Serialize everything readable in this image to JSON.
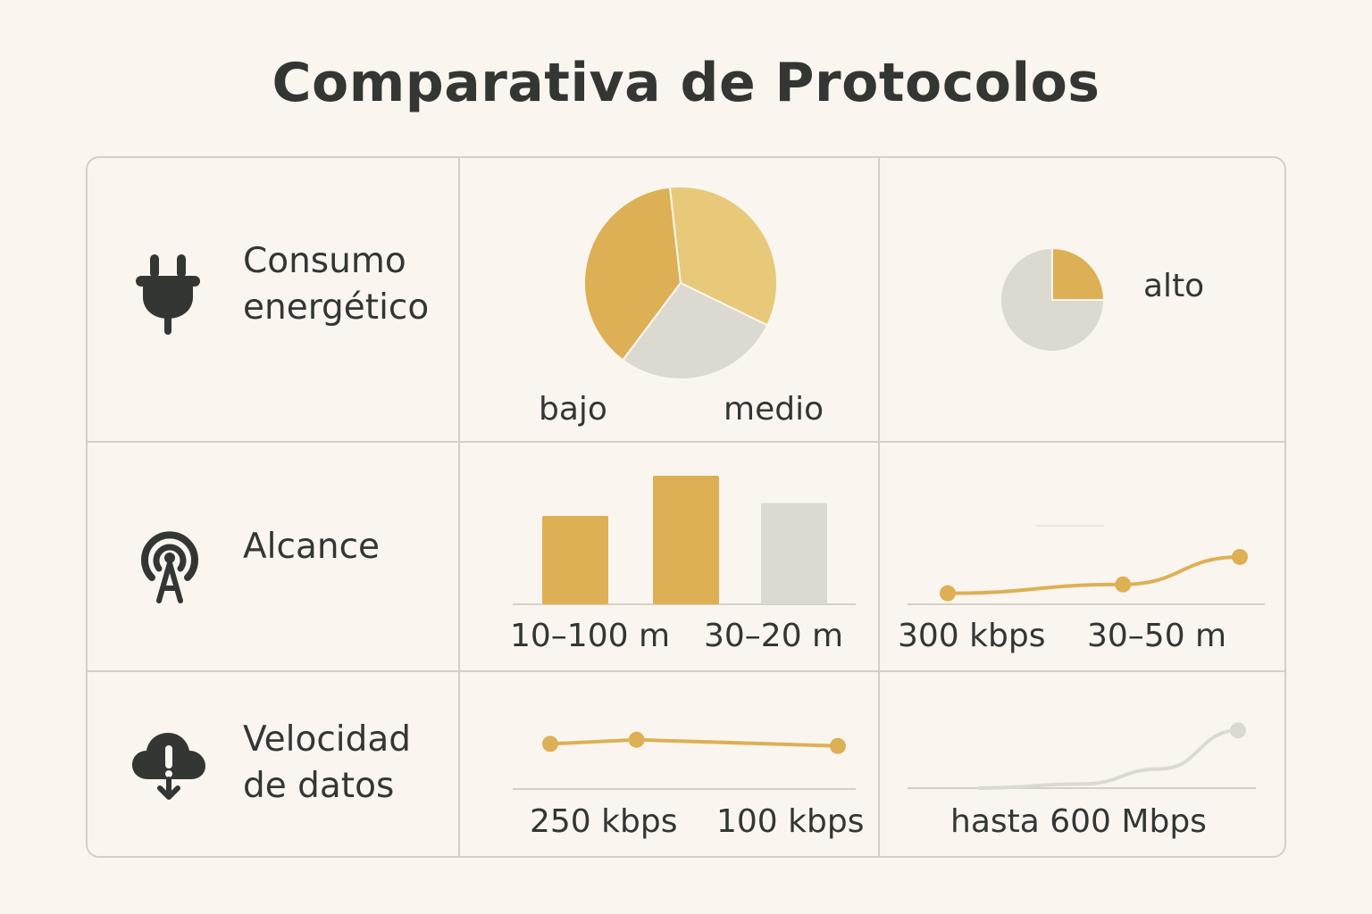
{
  "title": "Comparativa de Protocolos",
  "colors": {
    "background": "#faf6ef",
    "grid_line": "#d4d0c8",
    "gold_dark": "#ddb055",
    "gold_light": "#e8c97a",
    "grey": "#dcd9d0",
    "text": "#333633"
  },
  "rows": [
    {
      "icon": "plug-icon",
      "label_lines": [
        "Consumo",
        "energético"
      ],
      "cells": [
        {
          "labels": [
            "bajo",
            "medio"
          ]
        },
        {
          "labels": [
            "alto"
          ]
        }
      ]
    },
    {
      "icon": "antenna-icon",
      "label_lines": [
        "Alcance"
      ],
      "cells": [
        {
          "labels": [
            "10–100 m",
            "30–20 m"
          ]
        },
        {
          "labels": [
            "300 kbps",
            "30–50 m"
          ]
        }
      ]
    },
    {
      "icon": "cloud-download-icon",
      "label_lines": [
        "Velocidad",
        "de datos"
      ],
      "cells": [
        {
          "labels": [
            "250 kbps",
            "100 kbps"
          ]
        },
        {
          "labels": [
            "hasta 600 Mbps"
          ]
        }
      ]
    }
  ],
  "chart_data": [
    {
      "type": "pie",
      "slices": [
        {
          "value": 38,
          "color": "#ddb055"
        },
        {
          "value": 34,
          "color": "#e8c97a"
        },
        {
          "value": 28,
          "color": "#dcd9d0"
        }
      ]
    },
    {
      "type": "pie",
      "slices": [
        {
          "value": 25,
          "color": "#ddb055"
        },
        {
          "value": 75,
          "color": "#dcd9d0"
        }
      ]
    },
    {
      "type": "bar",
      "values": [
        55,
        80,
        63
      ],
      "colors": [
        "#ddb055",
        "#ddb055",
        "#dcd9d0"
      ],
      "ylim": [
        0,
        100
      ]
    },
    {
      "type": "line",
      "values": [
        10,
        18,
        43
      ],
      "x": [
        0,
        0.6,
        1
      ],
      "color": "#ddb055",
      "ylim": [
        0,
        60
      ]
    },
    {
      "type": "line",
      "values": [
        22,
        24,
        21
      ],
      "x": [
        0,
        0.3,
        1
      ],
      "color": "#ddb055",
      "ylim": [
        0,
        30
      ]
    },
    {
      "type": "line",
      "values": [
        0,
        3,
        14,
        42
      ],
      "x": [
        0,
        0.4,
        0.7,
        1
      ],
      "color": "#dcd9d0",
      "ylim": [
        0,
        50
      ]
    }
  ]
}
